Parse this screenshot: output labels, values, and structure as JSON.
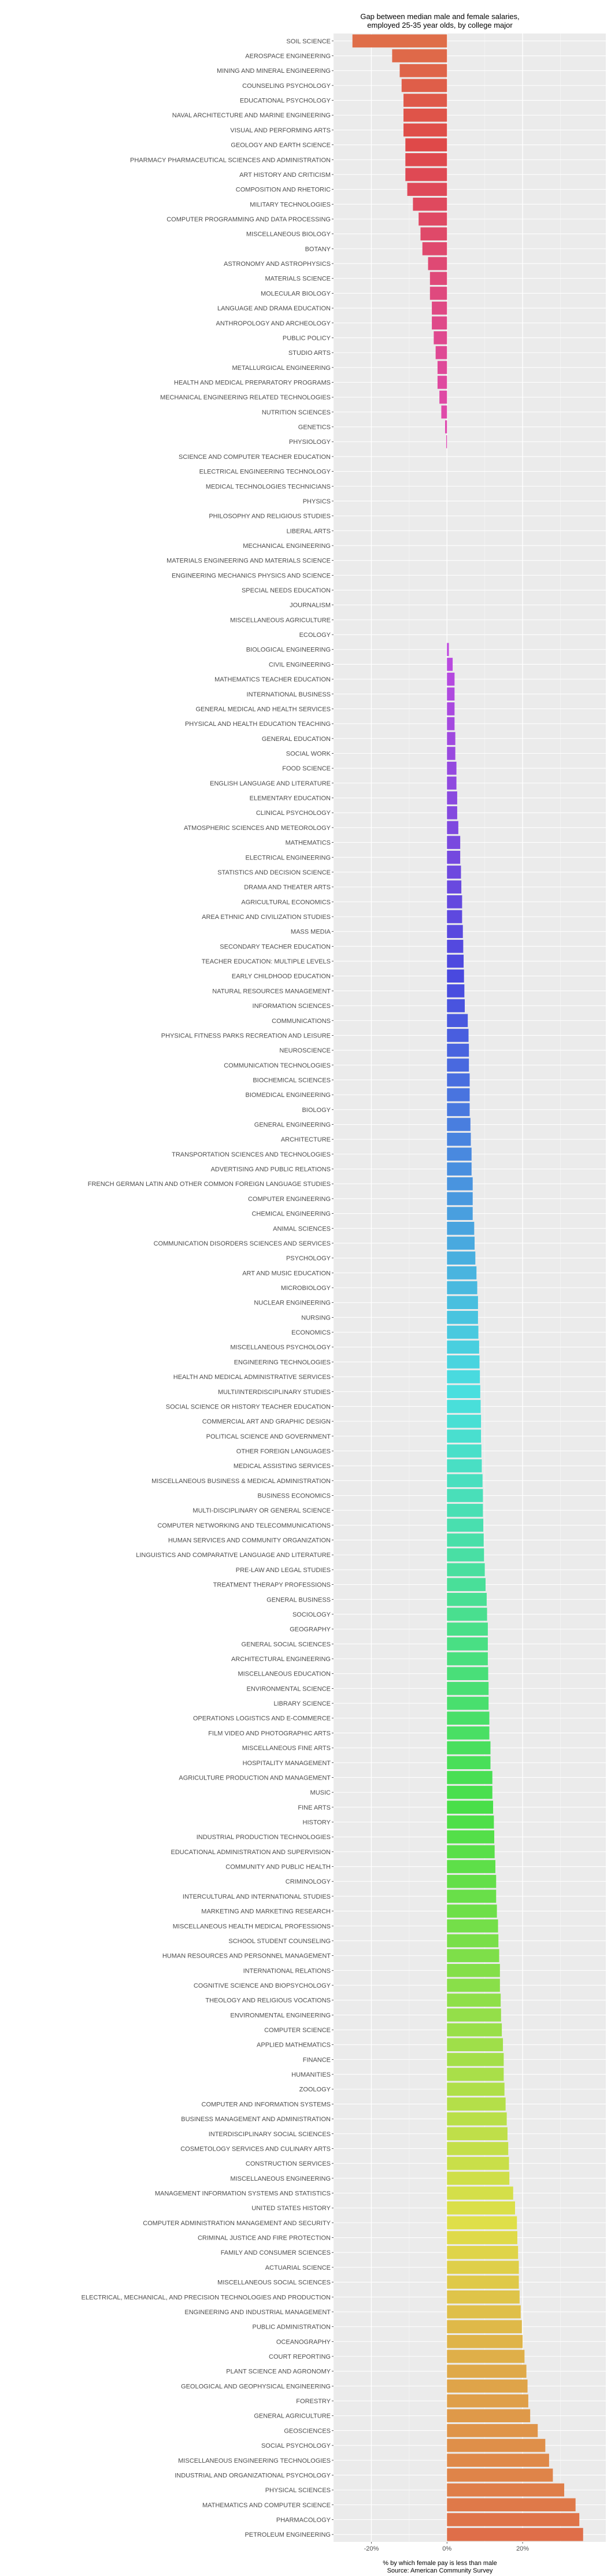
{
  "chart_data": {
    "type": "bar",
    "orientation": "horizontal",
    "title": [
      "Gap between median male and female salaries,",
      "employed 25-35 year olds, by college major"
    ],
    "xlabel": [
      "% by which female pay is less than male",
      "Source: American Community Survey"
    ],
    "ylabel": "",
    "xlim": [
      -0.3,
      0.42
    ],
    "x_ticks": [
      {
        "value": -0.2,
        "label": "-20%"
      },
      {
        "value": 0,
        "label": "0%"
      },
      {
        "value": 0.2,
        "label": "20%"
      }
    ],
    "grid": true,
    "legend": "none",
    "panel_background": "#EBEBEB",
    "categories": [
      "SOIL SCIENCE",
      "AEROSPACE ENGINEERING",
      "MINING AND MINERAL ENGINEERING",
      "COUNSELING PSYCHOLOGY",
      "EDUCATIONAL PSYCHOLOGY",
      "NAVAL ARCHITECTURE AND MARINE ENGINEERING",
      "VISUAL AND PERFORMING ARTS",
      "GEOLOGY AND EARTH SCIENCE",
      "PHARMACY PHARMACEUTICAL SCIENCES AND ADMINISTRATION",
      "ART HISTORY AND CRITICISM",
      "COMPOSITION AND RHETORIC",
      "MILITARY TECHNOLOGIES",
      "COMPUTER PROGRAMMING AND DATA PROCESSING",
      "MISCELLANEOUS BIOLOGY",
      "BOTANY",
      "ASTRONOMY AND ASTROPHYSICS",
      "MATERIALS SCIENCE",
      "MOLECULAR BIOLOGY",
      "LANGUAGE AND DRAMA EDUCATION",
      "ANTHROPOLOGY AND ARCHEOLOGY",
      "PUBLIC POLICY",
      "STUDIO ARTS",
      "METALLURGICAL ENGINEERING",
      "HEALTH AND MEDICAL PREPARATORY PROGRAMS",
      "MECHANICAL ENGINEERING RELATED TECHNOLOGIES",
      "NUTRITION SCIENCES",
      "GENETICS",
      "PHYSIOLOGY",
      "SCIENCE AND COMPUTER TEACHER EDUCATION",
      "ELECTRICAL ENGINEERING TECHNOLOGY",
      "MEDICAL TECHNOLOGIES TECHNICIANS",
      "PHYSICS",
      "PHILOSOPHY AND RELIGIOUS STUDIES",
      "LIBERAL ARTS",
      "MECHANICAL ENGINEERING",
      "MATERIALS ENGINEERING AND MATERIALS SCIENCE",
      "ENGINEERING MECHANICS PHYSICS AND SCIENCE",
      "SPECIAL NEEDS EDUCATION",
      "JOURNALISM",
      "MISCELLANEOUS AGRICULTURE",
      "ECOLOGY",
      "BIOLOGICAL ENGINEERING",
      "CIVIL ENGINEERING",
      "MATHEMATICS TEACHER EDUCATION",
      "INTERNATIONAL BUSINESS",
      "GENERAL MEDICAL AND HEALTH SERVICES",
      "PHYSICAL AND HEALTH EDUCATION TEACHING",
      "GENERAL EDUCATION",
      "SOCIAL WORK",
      "FOOD SCIENCE",
      "ENGLISH LANGUAGE AND LITERATURE",
      "ELEMENTARY EDUCATION",
      "CLINICAL PSYCHOLOGY",
      "ATMOSPHERIC SCIENCES AND METEOROLOGY",
      "MATHEMATICS",
      "ELECTRICAL ENGINEERING",
      "STATISTICS AND DECISION SCIENCE",
      "DRAMA AND THEATER ARTS",
      "AGRICULTURAL ECONOMICS",
      "AREA ETHNIC AND CIVILIZATION STUDIES",
      "MASS MEDIA",
      "SECONDARY TEACHER EDUCATION",
      "TEACHER EDUCATION: MULTIPLE LEVELS",
      "EARLY CHILDHOOD EDUCATION",
      "NATURAL RESOURCES MANAGEMENT",
      "INFORMATION SCIENCES",
      "COMMUNICATIONS",
      "PHYSICAL FITNESS PARKS RECREATION AND LEISURE",
      "NEUROSCIENCE",
      "COMMUNICATION TECHNOLOGIES",
      "BIOCHEMICAL SCIENCES",
      "BIOMEDICAL ENGINEERING",
      "BIOLOGY",
      "GENERAL ENGINEERING",
      "ARCHITECTURE",
      "TRANSPORTATION SCIENCES AND TECHNOLOGIES",
      "ADVERTISING AND PUBLIC RELATIONS",
      "FRENCH GERMAN LATIN AND OTHER COMMON FOREIGN LANGUAGE STUDIES",
      "COMPUTER ENGINEERING",
      "CHEMICAL ENGINEERING",
      "ANIMAL SCIENCES",
      "COMMUNICATION DISORDERS SCIENCES AND SERVICES",
      "PSYCHOLOGY",
      "ART AND MUSIC EDUCATION",
      "MICROBIOLOGY",
      "NUCLEAR ENGINEERING",
      "NURSING",
      "ECONOMICS",
      "MISCELLANEOUS PSYCHOLOGY",
      "ENGINEERING TECHNOLOGIES",
      "HEALTH AND MEDICAL ADMINISTRATIVE SERVICES",
      "MULTI/INTERDISCIPLINARY STUDIES",
      "SOCIAL SCIENCE OR HISTORY TEACHER EDUCATION",
      "COMMERCIAL ART AND GRAPHIC DESIGN",
      "POLITICAL SCIENCE AND GOVERNMENT",
      "OTHER FOREIGN LANGUAGES",
      "MEDICAL ASSISTING SERVICES",
      "MISCELLANEOUS BUSINESS & MEDICAL ADMINISTRATION",
      "BUSINESS ECONOMICS",
      "MULTI-DISCIPLINARY OR GENERAL SCIENCE",
      "COMPUTER NETWORKING AND TELECOMMUNICATIONS",
      "HUMAN SERVICES AND COMMUNITY ORGANIZATION",
      "LINGUISTICS AND COMPARATIVE LANGUAGE AND LITERATURE",
      "PRE-LAW AND LEGAL STUDIES",
      "TREATMENT THERAPY PROFESSIONS",
      "GENERAL BUSINESS",
      "SOCIOLOGY",
      "GEOGRAPHY",
      "GENERAL SOCIAL SCIENCES",
      "ARCHITECTURAL ENGINEERING",
      "MISCELLANEOUS EDUCATION",
      "ENVIRONMENTAL SCIENCE",
      "LIBRARY SCIENCE",
      "OPERATIONS LOGISTICS AND E-COMMERCE",
      "FILM VIDEO AND PHOTOGRAPHIC ARTS",
      "MISCELLANEOUS FINE ARTS",
      "HOSPITALITY MANAGEMENT",
      "AGRICULTURE PRODUCTION AND MANAGEMENT",
      "MUSIC",
      "FINE ARTS",
      "HISTORY",
      "INDUSTRIAL PRODUCTION TECHNOLOGIES",
      "EDUCATIONAL ADMINISTRATION AND SUPERVISION",
      "COMMUNITY AND PUBLIC HEALTH",
      "CRIMINOLOGY",
      "INTERCULTURAL AND INTERNATIONAL STUDIES",
      "MARKETING AND MARKETING RESEARCH",
      "MISCELLANEOUS HEALTH MEDICAL PROFESSIONS",
      "SCHOOL STUDENT COUNSELING",
      "HUMAN RESOURCES AND PERSONNEL MANAGEMENT",
      "INTERNATIONAL RELATIONS",
      "COGNITIVE SCIENCE AND BIOPSYCHOLOGY",
      "THEOLOGY AND RELIGIOUS VOCATIONS",
      "ENVIRONMENTAL ENGINEERING",
      "COMPUTER SCIENCE",
      "APPLIED MATHEMATICS",
      "FINANCE",
      "HUMANITIES",
      "ZOOLOGY",
      "COMPUTER AND INFORMATION SYSTEMS",
      "BUSINESS MANAGEMENT AND ADMINISTRATION",
      "INTERDISCIPLINARY SOCIAL SCIENCES",
      "COSMETOLOGY SERVICES AND CULINARY ARTS",
      "CONSTRUCTION SERVICES",
      "MISCELLANEOUS ENGINEERING",
      "MANAGEMENT INFORMATION SYSTEMS AND STATISTICS",
      "UNITED STATES HISTORY",
      "COMPUTER ADMINISTRATION MANAGEMENT AND SECURITY",
      "CRIMINAL JUSTICE AND FIRE PROTECTION",
      "FAMILY AND CONSUMER SCIENCES",
      "ACTUARIAL SCIENCE",
      "MISCELLANEOUS SOCIAL SCIENCES",
      "ELECTRICAL, MECHANICAL, AND PRECISION TECHNOLOGIES AND PRODUCTION",
      "ENGINEERING AND INDUSTRIAL MANAGEMENT",
      "PUBLIC ADMINISTRATION",
      "OCEANOGRAPHY",
      "COURT REPORTING",
      "PLANT SCIENCE AND AGRONOMY",
      "GEOLOGICAL AND GEOPHYSICAL ENGINEERING",
      "FORESTRY",
      "GENERAL AGRICULTURE",
      "GEOSCIENCES",
      "SOCIAL PSYCHOLOGY",
      "MISCELLANEOUS ENGINEERING TECHNOLOGIES",
      "INDUSTRIAL AND ORGANIZATIONAL PSYCHOLOGY",
      "PHYSICAL SCIENCES",
      "MATHEMATICS AND COMPUTER SCIENCE",
      "PHARMACOLOGY",
      "PETROLEUM ENGINEERING"
    ],
    "values": [
      -0.25,
      -0.145,
      -0.125,
      -0.12,
      -0.115,
      -0.115,
      -0.115,
      -0.11,
      -0.11,
      -0.11,
      -0.105,
      -0.09,
      -0.075,
      -0.07,
      -0.065,
      -0.05,
      -0.045,
      -0.045,
      -0.04,
      -0.04,
      -0.035,
      -0.03,
      -0.025,
      -0.025,
      -0.02,
      -0.015,
      -0.005,
      -0.002,
      0,
      0,
      0,
      0,
      0,
      0,
      0,
      0,
      0,
      0,
      0,
      0,
      0,
      0.005,
      0.015,
      0.02,
      0.02,
      0.02,
      0.02,
      0.022,
      0.022,
      0.025,
      0.025,
      0.027,
      0.027,
      0.03,
      0.035,
      0.035,
      0.037,
      0.038,
      0.04,
      0.04,
      0.042,
      0.043,
      0.044,
      0.045,
      0.046,
      0.047,
      0.055,
      0.057,
      0.058,
      0.058,
      0.06,
      0.06,
      0.06,
      0.062,
      0.063,
      0.065,
      0.065,
      0.068,
      0.068,
      0.068,
      0.072,
      0.073,
      0.075,
      0.078,
      0.08,
      0.082,
      0.082,
      0.083,
      0.085,
      0.086,
      0.087,
      0.088,
      0.089,
      0.09,
      0.09,
      0.091,
      0.092,
      0.094,
      0.095,
      0.095,
      0.096,
      0.097,
      0.098,
      0.1,
      0.102,
      0.105,
      0.106,
      0.108,
      0.108,
      0.108,
      0.109,
      0.11,
      0.11,
      0.112,
      0.112,
      0.115,
      0.115,
      0.12,
      0.12,
      0.122,
      0.124,
      0.125,
      0.126,
      0.128,
      0.13,
      0.13,
      0.132,
      0.135,
      0.136,
      0.138,
      0.14,
      0.14,
      0.142,
      0.143,
      0.145,
      0.148,
      0.15,
      0.15,
      0.152,
      0.155,
      0.158,
      0.16,
      0.162,
      0.164,
      0.165,
      0.175,
      0.18,
      0.185,
      0.186,
      0.188,
      0.19,
      0.19,
      0.192,
      0.195,
      0.198,
      0.2,
      0.205,
      0.21,
      0.213,
      0.215,
      0.22,
      0.24,
      0.26,
      0.27,
      0.28,
      0.31,
      0.34,
      0.35,
      0.36
    ]
  }
}
